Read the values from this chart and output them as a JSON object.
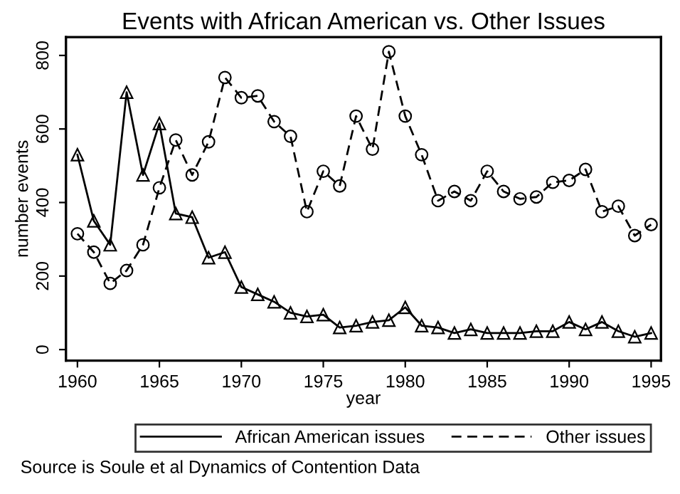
{
  "chart_data": {
    "type": "line",
    "title": "Events with African American vs. Other Issues",
    "xlabel": "year",
    "ylabel": "number events",
    "x": [
      1960,
      1961,
      1962,
      1963,
      1964,
      1965,
      1966,
      1967,
      1968,
      1969,
      1970,
      1971,
      1972,
      1973,
      1974,
      1975,
      1976,
      1977,
      1978,
      1979,
      1980,
      1981,
      1982,
      1983,
      1984,
      1985,
      1986,
      1987,
      1988,
      1989,
      1990,
      1991,
      1992,
      1993,
      1994,
      1995
    ],
    "series": [
      {
        "name": "African American issues",
        "color": "#000000",
        "line_style": "solid",
        "marker": "triangle",
        "values": [
          530,
          350,
          285,
          700,
          475,
          615,
          370,
          360,
          250,
          265,
          170,
          150,
          130,
          100,
          90,
          95,
          60,
          65,
          75,
          80,
          115,
          65,
          60,
          45,
          55,
          45,
          45,
          45,
          50,
          50,
          75,
          55,
          75,
          50,
          35,
          45
        ]
      },
      {
        "name": "Other issues",
        "color": "#000000",
        "line_style": "dashed",
        "marker": "circle",
        "values": [
          315,
          265,
          180,
          215,
          285,
          440,
          570,
          475,
          565,
          740,
          685,
          690,
          620,
          580,
          375,
          485,
          445,
          635,
          545,
          810,
          635,
          530,
          405,
          430,
          405,
          485,
          430,
          410,
          415,
          455,
          460,
          490,
          375,
          390,
          310,
          340
        ]
      }
    ],
    "xlim": [
      1959.3,
      1995.6
    ],
    "xticks": [
      1960,
      1965,
      1970,
      1975,
      1980,
      1985,
      1990,
      1995
    ],
    "ylim": [
      -30,
      850
    ],
    "yticks": [
      0,
      200,
      400,
      600,
      800
    ],
    "grid": false,
    "legend": "bottom",
    "annotations": [
      "Source is Soule et al Dynamics of Contention Data"
    ]
  }
}
